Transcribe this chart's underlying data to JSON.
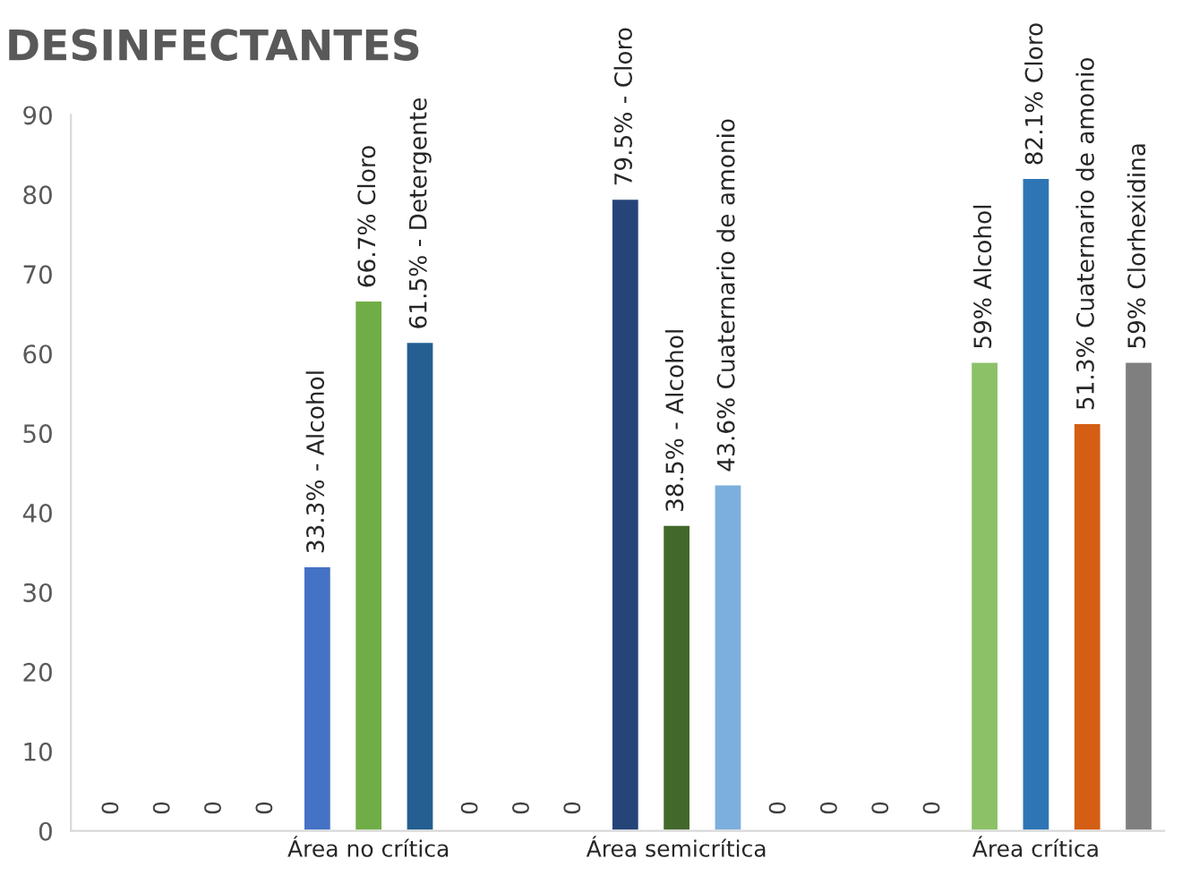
{
  "chart_data": {
    "type": "bar",
    "title": "DESINFECTANTES",
    "categories": [
      null,
      null,
      null,
      null,
      null,
      "Área no crítica",
      null,
      null,
      null,
      null,
      null,
      "Área semicrítica",
      null,
      null,
      null,
      null,
      null,
      null,
      "Área crítica",
      null,
      null
    ],
    "values": [
      0,
      0,
      0,
      0,
      33.3,
      66.7,
      61.5,
      0,
      0,
      0,
      79.5,
      38.5,
      43.6,
      0,
      0,
      0,
      0,
      59,
      82.1,
      51.3,
      59
    ],
    "value_labels": [
      "0",
      "0",
      "0",
      "0",
      "33.3% - Alcohol",
      "66.7% Cloro",
      "61.5% - Detergente",
      "0",
      "0",
      "0",
      "79.5% - Cloro",
      "38.5% - Alcohol",
      "43.6% Cuaternario de amonio",
      "0",
      "0",
      "0",
      "0",
      "59% Alcohol",
      "82.1% Cloro",
      "51.3% Cuaternario de amonio",
      "59% Clorhexidina"
    ],
    "colors": [
      null,
      null,
      null,
      null,
      "#4472c4",
      "#70ad47",
      "#255e91",
      null,
      null,
      null,
      "#264478",
      "#43682b",
      "#7cafdd",
      null,
      null,
      null,
      null,
      "#8cc168",
      "#2e75b6",
      "#d45e14",
      "#7f7f7f"
    ],
    "ylim": [
      0,
      90
    ],
    "yticks": [
      0,
      10,
      20,
      30,
      40,
      50,
      60,
      70,
      80,
      90
    ],
    "grid": false,
    "legend": false
  }
}
